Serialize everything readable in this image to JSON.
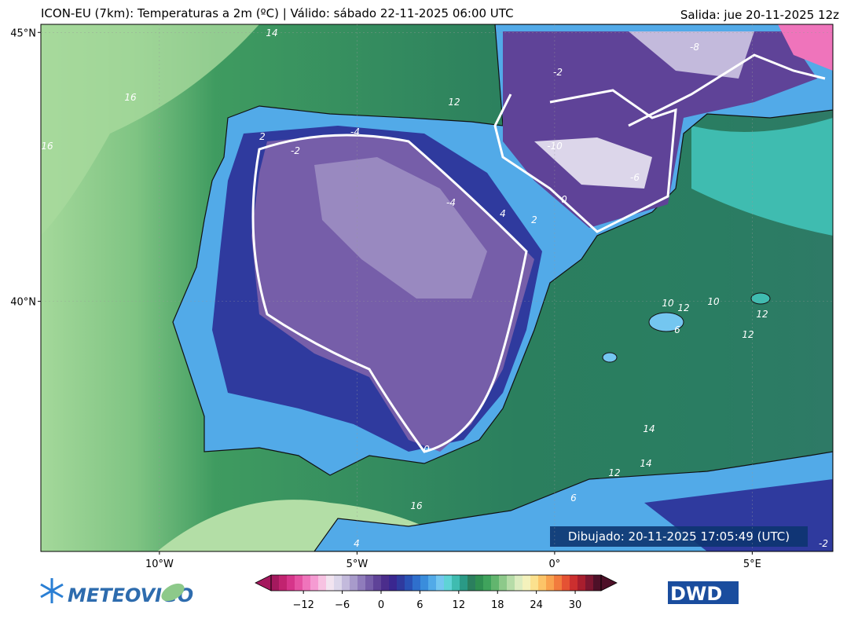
{
  "map": {
    "title": "ICON-EU (7km): Temperaturas a 2m (ºC) | Válido: sábado 22-11-2025 06:00 UTC",
    "run": "Salida: jue 20-11-2025 12z",
    "drawn": "Dibujado: 20-11-2025 17:05:49 (UTC)",
    "xlim": [
      -13,
      7.04
    ],
    "ylim": [
      35.35,
      45.15
    ],
    "xticks": [
      {
        "value": -10,
        "label": "10°W"
      },
      {
        "value": -5,
        "label": "5°W"
      },
      {
        "value": 0,
        "label": "0°"
      },
      {
        "value": 5,
        "label": "5°E"
      }
    ],
    "yticks": [
      {
        "value": 45,
        "label": "45°N"
      },
      {
        "value": 40,
        "label": "40°N"
      }
    ],
    "grid": true,
    "contour_labels": [
      "14",
      "16",
      "16",
      "12",
      "2",
      "-2",
      "-4",
      "-4",
      "4",
      "2",
      "0",
      "-2",
      "-8",
      "-10",
      "-6",
      "10",
      "12",
      "10",
      "12",
      "6",
      "12",
      "14",
      "16",
      "14",
      "12",
      "6",
      "4",
      "0",
      "-2"
    ],
    "colorbar": {
      "lim": [
        -17,
        34
      ],
      "ticks": [
        {
          "value": -12,
          "label": "−12"
        },
        {
          "value": -6,
          "label": "−6"
        },
        0,
        6,
        12,
        18,
        24,
        30
      ],
      "colors": [
        "#a4195e",
        "#c12370",
        "#d6358a",
        "#e552a2",
        "#ef74bb",
        "#f59bd2",
        "#f7c2e2",
        "#f2e4f0",
        "#dcd6ea",
        "#c3badc",
        "#a89bcb",
        "#8f7cbb",
        "#765ea9",
        "#5f4398",
        "#4b2d8c",
        "#3a2790",
        "#2f3a9e",
        "#2a52b5",
        "#2f6fcc",
        "#3a8ddc",
        "#52aae8",
        "#74c6f0",
        "#5fd3d6",
        "#3fbcb0",
        "#2a9a86",
        "#2b7f5e",
        "#2f8f52",
        "#3fa35c",
        "#62b56e",
        "#8dc98a",
        "#b6dca8",
        "#dcecc0",
        "#f4f2bc",
        "#fbe18e",
        "#fcc468",
        "#f9a24e",
        "#f27b3d",
        "#e55233",
        "#cc2f2f",
        "#a81e2e",
        "#7c1630",
        "#4e1028"
      ]
    },
    "logos": {
      "left": "METEOVIGO",
      "right": "DWD"
    }
  }
}
